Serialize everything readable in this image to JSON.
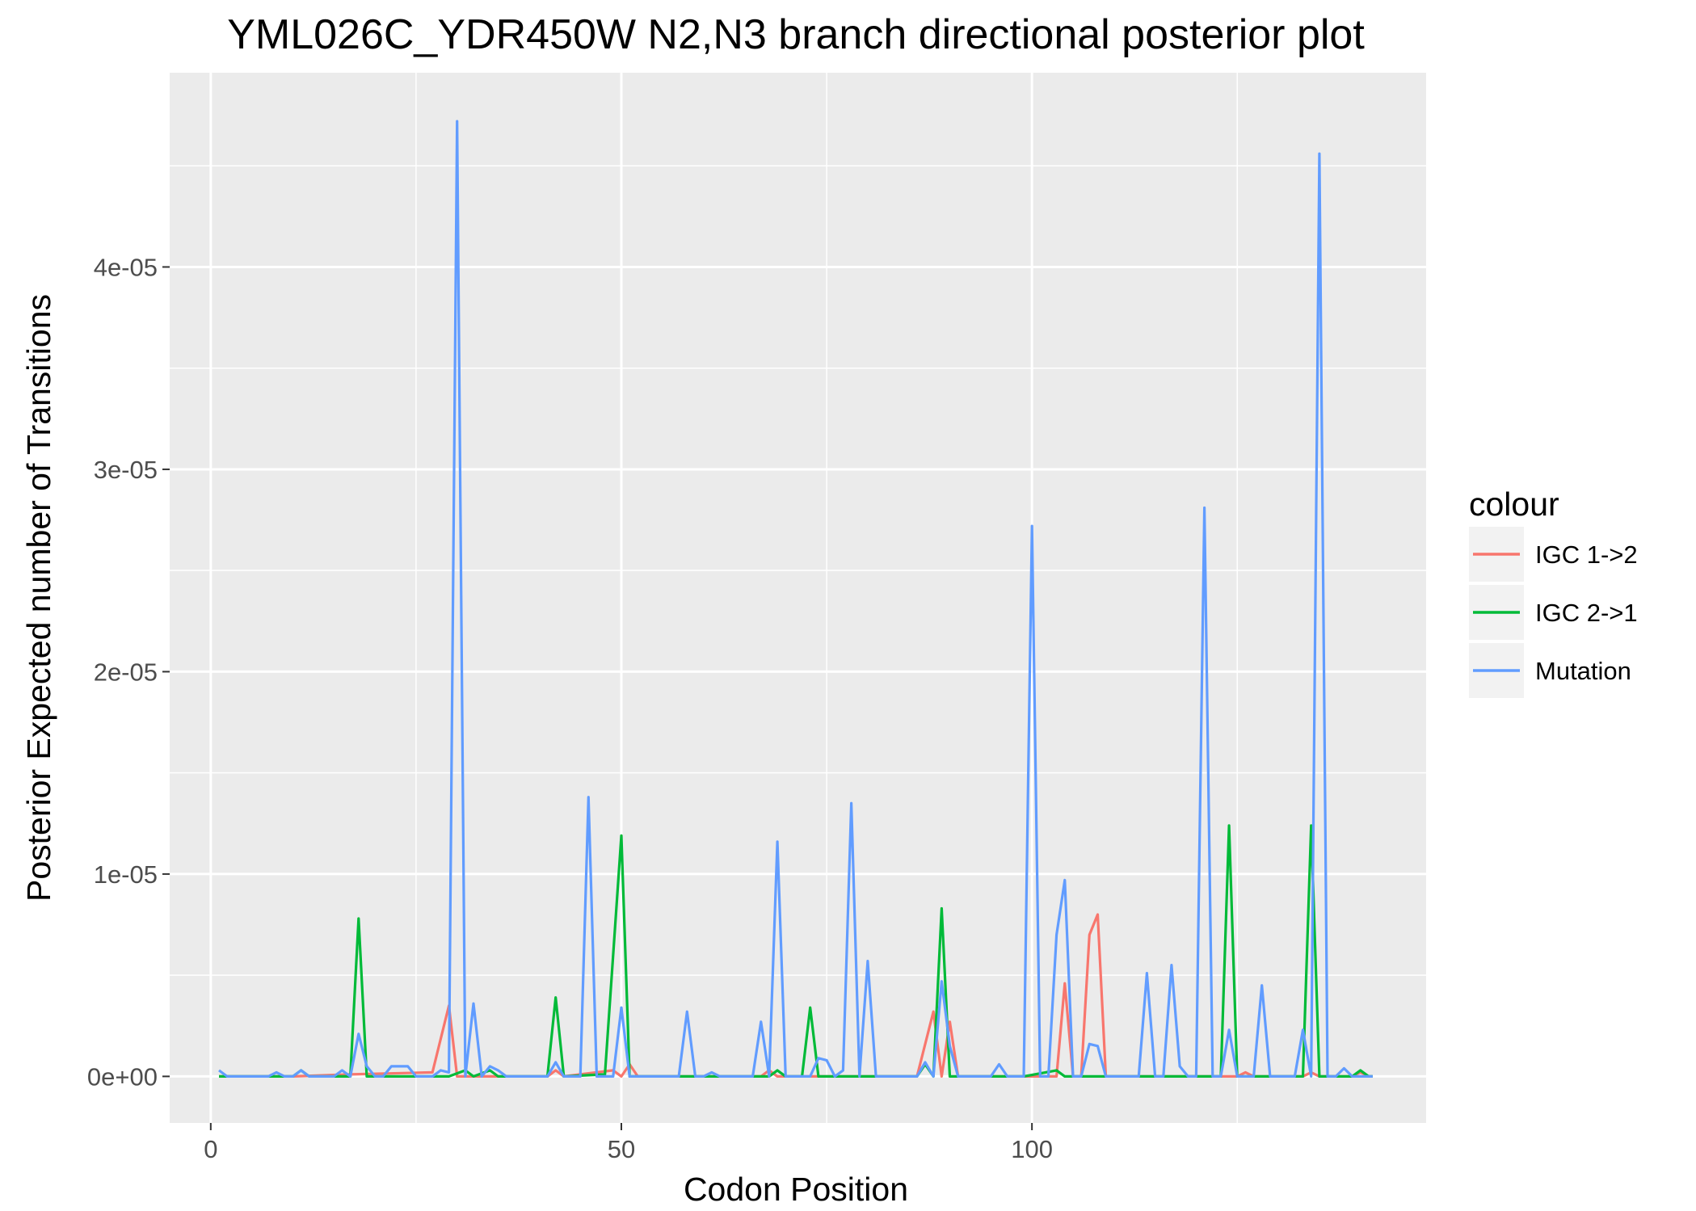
{
  "chart_data": {
    "type": "line",
    "title": "YML026C_YDR450W N2,N3 branch directional posterior plot",
    "xlabel": "Codon Position",
    "ylabel": "Posterior Expected number of Transitions",
    "xlim": [
      -5,
      148
    ],
    "ylim": [
      -2.3e-06,
      4.96e-05
    ],
    "x_ticks": [
      0,
      50,
      100
    ],
    "x_tick_labels": [
      "0",
      "50",
      "100"
    ],
    "y_ticks": [
      0,
      1e-05,
      2e-05,
      3e-05,
      4e-05
    ],
    "y_tick_labels": [
      "0e+00",
      "1e-05",
      "2e-05",
      "3e-05",
      "4e-05"
    ],
    "grid": true,
    "legend": {
      "title": "colour",
      "position": "right"
    },
    "series": [
      {
        "name": "IGC 1->2",
        "color": "#F8766D",
        "points": [
          [
            1,
            0
          ],
          [
            10,
            0
          ],
          [
            17,
            1e-07
          ],
          [
            27,
            2e-07
          ],
          [
            29,
            3.5e-06
          ],
          [
            30,
            0
          ],
          [
            35,
            0
          ],
          [
            41,
            0
          ],
          [
            42,
            3e-07
          ],
          [
            43,
            0
          ],
          [
            49,
            3e-07
          ],
          [
            50,
            0
          ],
          [
            51,
            6e-07
          ],
          [
            52,
            0
          ],
          [
            67,
            0
          ],
          [
            68,
            3e-07
          ],
          [
            69,
            0
          ],
          [
            86,
            0
          ],
          [
            88,
            3.2e-06
          ],
          [
            89,
            0
          ],
          [
            90,
            2.7e-06
          ],
          [
            91,
            0
          ],
          [
            103,
            0
          ],
          [
            104,
            4.6e-06
          ],
          [
            105,
            0
          ],
          [
            106,
            0
          ],
          [
            107,
            7e-06
          ],
          [
            108,
            8e-06
          ],
          [
            109,
            0
          ],
          [
            125,
            0
          ],
          [
            126,
            2e-07
          ],
          [
            127,
            0
          ],
          [
            133,
            0
          ],
          [
            134,
            2e-07
          ],
          [
            135,
            0
          ],
          [
            139,
            0
          ],
          [
            140,
            2e-07
          ],
          [
            141,
            0
          ],
          [
            141.5,
            0
          ]
        ]
      },
      {
        "name": "IGC 2->1",
        "color": "#00BA38",
        "points": [
          [
            1,
            0
          ],
          [
            10,
            0
          ],
          [
            11,
            3e-07
          ],
          [
            12,
            0
          ],
          [
            17,
            0
          ],
          [
            18,
            7.8e-06
          ],
          [
            19,
            0
          ],
          [
            29,
            0
          ],
          [
            31,
            3e-07
          ],
          [
            32,
            0
          ],
          [
            34,
            3e-07
          ],
          [
            35,
            0
          ],
          [
            41,
            0
          ],
          [
            42,
            3.9e-06
          ],
          [
            43,
            0
          ],
          [
            48,
            1e-07
          ],
          [
            50,
            1.19e-05
          ],
          [
            51,
            0
          ],
          [
            68,
            0
          ],
          [
            69,
            3e-07
          ],
          [
            70,
            0
          ],
          [
            72,
            0
          ],
          [
            73,
            3.4e-06
          ],
          [
            74,
            0
          ],
          [
            86,
            0
          ],
          [
            87,
            6e-07
          ],
          [
            88,
            0
          ],
          [
            89,
            8.3e-06
          ],
          [
            90,
            0
          ],
          [
            99,
            0
          ],
          [
            103,
            3e-07
          ],
          [
            104,
            0
          ],
          [
            123,
            0
          ],
          [
            124,
            1.24e-05
          ],
          [
            125,
            0
          ],
          [
            133,
            0
          ],
          [
            134,
            1.24e-05
          ],
          [
            135,
            0
          ],
          [
            139,
            0
          ],
          [
            140,
            3e-07
          ],
          [
            141,
            0
          ],
          [
            141.5,
            0
          ]
        ]
      },
      {
        "name": "Mutation",
        "color": "#619CFF",
        "points": [
          [
            1,
            3e-07
          ],
          [
            2,
            0
          ],
          [
            7,
            0
          ],
          [
            8,
            2e-07
          ],
          [
            9,
            0
          ],
          [
            10,
            0
          ],
          [
            11,
            3e-07
          ],
          [
            12,
            0
          ],
          [
            15,
            0
          ],
          [
            16,
            3e-07
          ],
          [
            17,
            0
          ],
          [
            18,
            2.1e-06
          ],
          [
            19,
            5e-07
          ],
          [
            20,
            0
          ],
          [
            21,
            0
          ],
          [
            22,
            5e-07
          ],
          [
            24,
            5e-07
          ],
          [
            25,
            0
          ],
          [
            27,
            0
          ],
          [
            28,
            3e-07
          ],
          [
            29,
            2e-07
          ],
          [
            30,
            4.72e-05
          ],
          [
            31,
            0
          ],
          [
            32,
            3.6e-06
          ],
          [
            33,
            0
          ],
          [
            34,
            5e-07
          ],
          [
            35,
            3e-07
          ],
          [
            36,
            0
          ],
          [
            41,
            0
          ],
          [
            42,
            7e-07
          ],
          [
            43,
            0
          ],
          [
            45,
            0
          ],
          [
            46,
            1.38e-05
          ],
          [
            47,
            0
          ],
          [
            49,
            0
          ],
          [
            50,
            3.4e-06
          ],
          [
            51,
            0
          ],
          [
            57,
            0
          ],
          [
            58,
            3.2e-06
          ],
          [
            59,
            0
          ],
          [
            60,
            0
          ],
          [
            61,
            2e-07
          ],
          [
            62,
            0
          ],
          [
            66,
            0
          ],
          [
            67,
            2.7e-06
          ],
          [
            68,
            0
          ],
          [
            69,
            1.16e-05
          ],
          [
            70,
            0
          ],
          [
            73,
            0
          ],
          [
            74,
            9e-07
          ],
          [
            75,
            8e-07
          ],
          [
            76,
            0
          ],
          [
            77,
            3e-07
          ],
          [
            78,
            1.35e-05
          ],
          [
            79,
            0
          ],
          [
            80,
            5.7e-06
          ],
          [
            81,
            0
          ],
          [
            86,
            0
          ],
          [
            87,
            7e-07
          ],
          [
            88,
            0
          ],
          [
            89,
            4.7e-06
          ],
          [
            90,
            1.5e-06
          ],
          [
            91,
            0
          ],
          [
            95,
            0
          ],
          [
            96,
            6e-07
          ],
          [
            97,
            0
          ],
          [
            99,
            0
          ],
          [
            100,
            2.72e-05
          ],
          [
            101,
            0
          ],
          [
            102,
            0
          ],
          [
            103,
            7e-06
          ],
          [
            104,
            9.7e-06
          ],
          [
            105,
            0
          ],
          [
            106,
            0
          ],
          [
            107,
            1.6e-06
          ],
          [
            108,
            1.5e-06
          ],
          [
            109,
            0
          ],
          [
            113,
            0
          ],
          [
            114,
            5.1e-06
          ],
          [
            115,
            0
          ],
          [
            116,
            0
          ],
          [
            117,
            5.5e-06
          ],
          [
            118,
            5e-07
          ],
          [
            119,
            0
          ],
          [
            120,
            0
          ],
          [
            121,
            2.81e-05
          ],
          [
            122,
            0
          ],
          [
            123,
            0
          ],
          [
            124,
            2.3e-06
          ],
          [
            125,
            0
          ],
          [
            127,
            0
          ],
          [
            128,
            4.5e-06
          ],
          [
            129,
            0
          ],
          [
            132,
            0
          ],
          [
            133,
            2.3e-06
          ],
          [
            134,
            0
          ],
          [
            135,
            4.56e-05
          ],
          [
            136,
            0
          ],
          [
            137,
            0
          ],
          [
            138,
            4e-07
          ],
          [
            139,
            0
          ],
          [
            141.5,
            0
          ]
        ]
      }
    ]
  }
}
